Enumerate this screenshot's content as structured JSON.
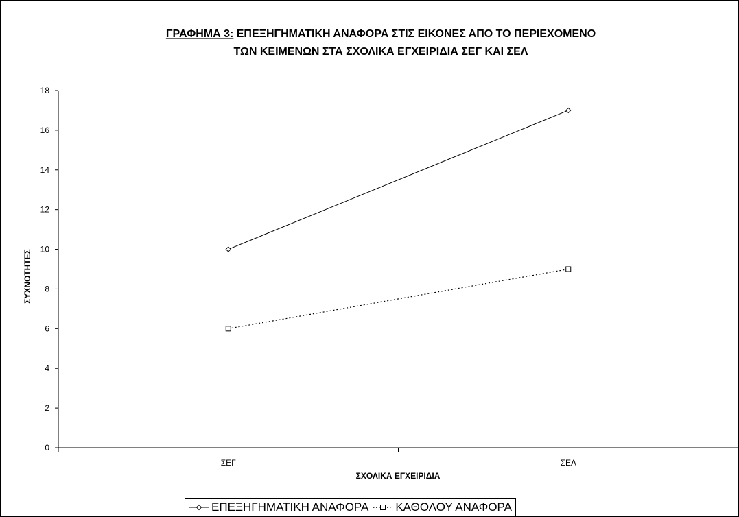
{
  "chart_data": {
    "type": "line",
    "title_line1_underlined": "ΓΡΑΦΗΜΑ 3:",
    "title_line1_rest": " ΕΠΕΞΗΓΗΜΑΤΙΚΗ ΑΝΑΦΟΡΑ ΣΤΙΣ ΕΙΚΟΝΕΣ ΑΠΟ ΤΟ ΠΕΡΙΕΧΟΜΕΝΟ",
    "title_line2": "ΤΩΝ ΚΕΙΜΕΝΩΝ ΣΤΑ ΣΧΟΛΙΚΑ ΕΓΧΕΙΡΙΔΙΑ ΣΕΓ ΚΑΙ ΣΕΛ",
    "xlabel": "ΣΧΟΛΙΚΑ ΕΓΧΕΙΡΙΔΙΑ",
    "ylabel": "ΣΥΧΝΟΤΗΤΕΣ",
    "categories": [
      "ΣΕΓ",
      "ΣΕΛ"
    ],
    "ylim": [
      0,
      18
    ],
    "yticks": [
      0,
      2,
      4,
      6,
      8,
      10,
      12,
      14,
      16,
      18
    ],
    "grid": false,
    "legend_position": "bottom",
    "series": [
      {
        "name": "ΕΠΕΞΗΓΗΜΑΤΙΚΗ ΑΝΑΦΟΡΑ",
        "values": [
          10,
          17
        ],
        "marker": "diamond",
        "line": "solid",
        "color": "#000000"
      },
      {
        "name": "ΚΑΘΟΛΟΥ ΑΝΑΦΟΡΑ",
        "values": [
          6,
          9
        ],
        "marker": "square",
        "line": "dotted",
        "color": "#000000"
      }
    ]
  }
}
